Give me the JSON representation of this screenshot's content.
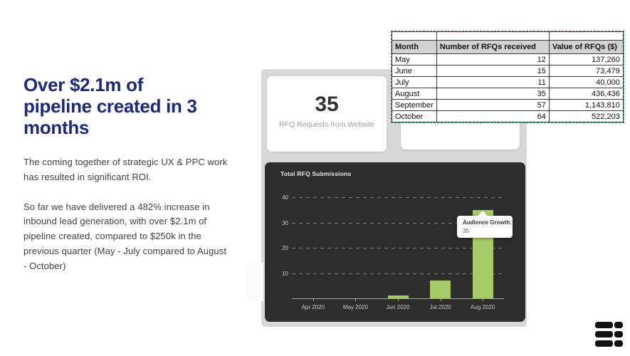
{
  "slide": {
    "heading_lines": [
      "Over $2.1m of",
      "pipeline created in 3",
      "months"
    ],
    "heading_color": "#1e2a78",
    "body": [
      "The coming together of strategic UX & PPC work has resulted in significant ROI.",
      "So far we have delivered a 482% increase in inbound lead generation, with over $2.1m of pipeline created, compared to $250k in the previous quarter (May - July compared to August - October)"
    ]
  },
  "spreadsheet": {
    "columns": [
      "Month",
      "Number of RFQs received",
      "Value of RFQs ($)"
    ],
    "rows": [
      [
        "May",
        "12",
        "137,260"
      ],
      [
        "June",
        "15",
        "73,479"
      ],
      [
        "July",
        "11",
        "40,000"
      ],
      [
        "August",
        "35",
        "436,436"
      ],
      [
        "September",
        "57",
        "1,143,810"
      ],
      [
        "October",
        "64",
        "522,203"
      ]
    ],
    "selection_marquee_color": "#2f9e4e"
  },
  "dashboard": {
    "stat_card": {
      "value": "35",
      "label": "RFQ Requests from Website"
    },
    "chart": {
      "title": "Total RFQ Submissions",
      "tooltip": {
        "title": "Audience Growth:",
        "value": "35"
      }
    }
  },
  "chart_data": {
    "type": "bar",
    "title": "Total RFQ Submissions",
    "categories": [
      "Apr 2020",
      "May 2020",
      "Jun 2020",
      "Jul 2020",
      "Aug 2020"
    ],
    "values": [
      0,
      0,
      1,
      7,
      35
    ],
    "xlabel": "",
    "ylabel": "",
    "ylim": [
      0,
      45
    ],
    "yticks": [
      10,
      20,
      30,
      40
    ],
    "grid": true,
    "legend": false,
    "bar_color": "#a7ca68",
    "background": "#2d2d2d",
    "annotation": {
      "label": "Audience Growth:",
      "value": 35,
      "category": "Aug 2020"
    }
  }
}
